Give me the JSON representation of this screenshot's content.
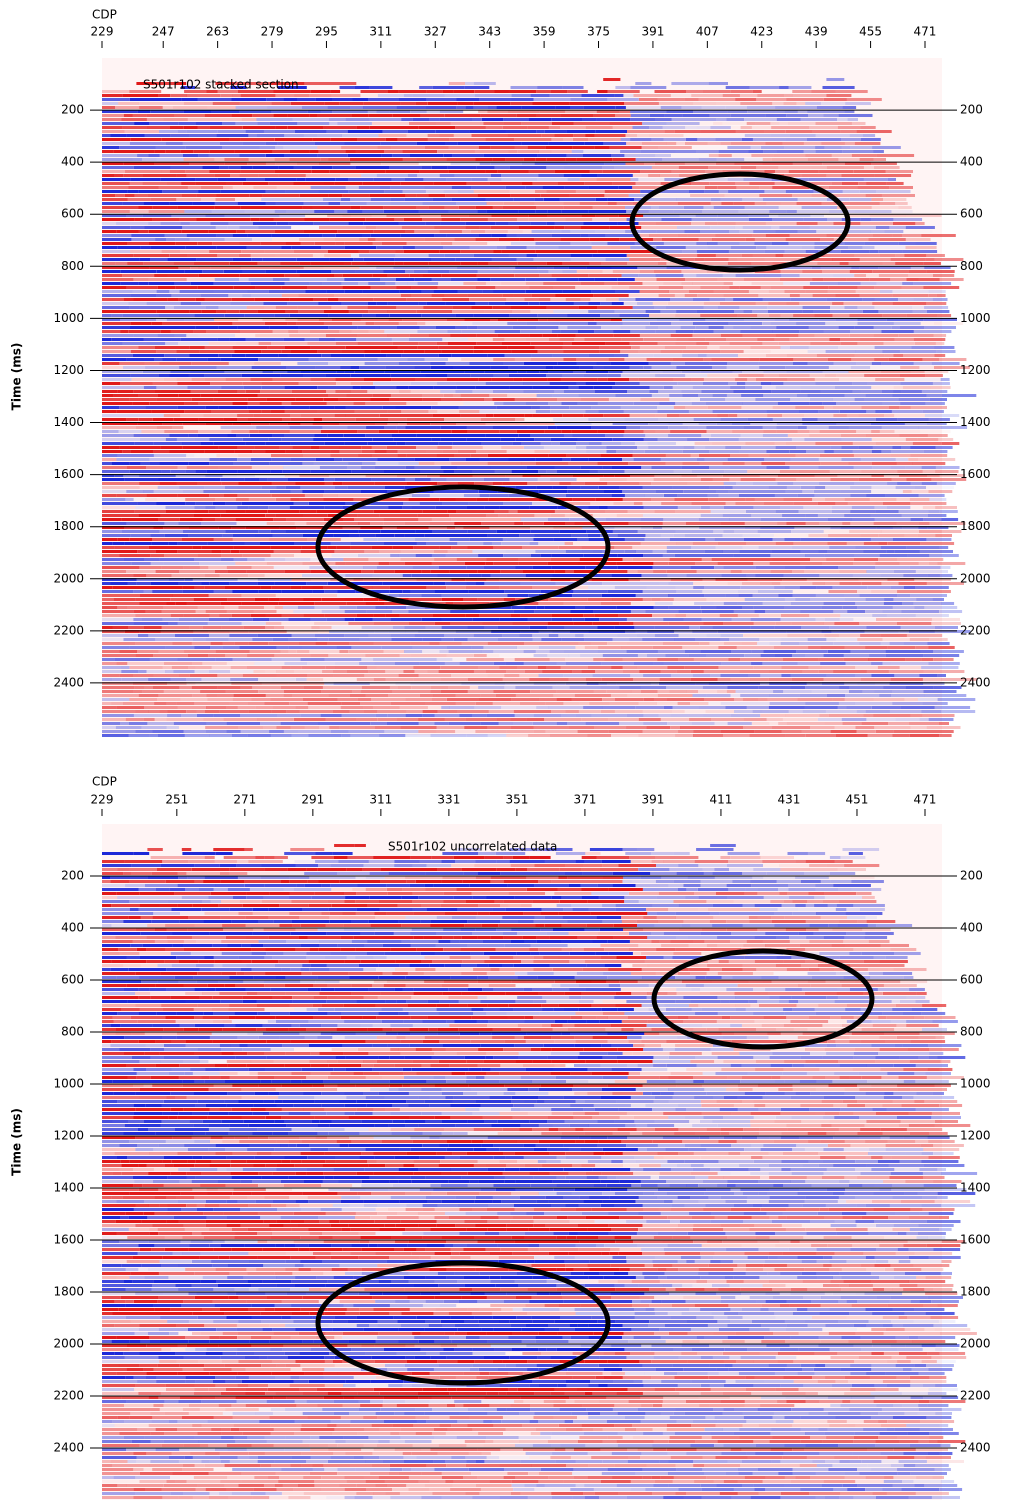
{
  "chart_data": [
    {
      "type": "seismic",
      "title": "S501r102 stacked section",
      "x_label": "CDP",
      "y_label": "Time (ms)",
      "xlim": [
        229,
        476
      ],
      "xticks": [
        229,
        247,
        263,
        279,
        295,
        311,
        327,
        343,
        359,
        375,
        391,
        407,
        423,
        439,
        455,
        471
      ],
      "ylim": [
        0,
        2600
      ],
      "yticks": [
        200,
        400,
        600,
        800,
        1000,
        1200,
        1400,
        1600,
        1800,
        2000,
        2200,
        2400
      ],
      "grid": true
    },
    {
      "type": "seismic",
      "title": "S501r102 uncorrelated data",
      "x_label": "CDP",
      "y_label": "Time (ms)",
      "xlim": [
        229,
        476
      ],
      "xticks": [
        229,
        251,
        271,
        291,
        311,
        331,
        351,
        371,
        391,
        411,
        431,
        451,
        471
      ],
      "ylim": [
        0,
        2600
      ],
      "yticks": [
        200,
        400,
        600,
        800,
        1000,
        1200,
        1400,
        1600,
        1800,
        2000,
        2200,
        2400
      ],
      "grid": true
    }
  ]
}
